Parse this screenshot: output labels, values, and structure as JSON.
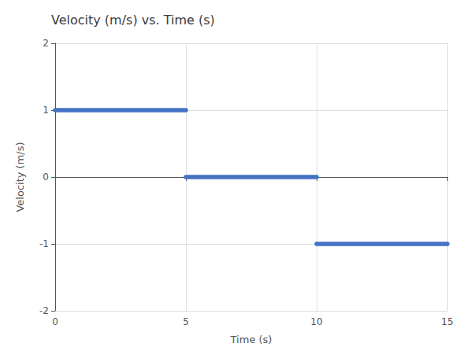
{
  "chart_data": {
    "type": "line",
    "title": "Velocity (m/s) vs. Time (s)",
    "xlabel": "Time (s)",
    "ylabel": "Velocity (m/s)",
    "x": [
      0,
      5,
      5,
      5,
      10,
      10,
      10,
      15
    ],
    "values": [
      1,
      1,
      null,
      0,
      0,
      null,
      -1,
      -1
    ],
    "color": "#4472C4",
    "marker": "none",
    "line_style": "solid",
    "xlim": [
      0,
      15
    ],
    "xticks": [
      0,
      5,
      10,
      15
    ],
    "ylim": [
      -2,
      2
    ],
    "yticks": [
      -2,
      -1,
      0,
      1,
      2
    ],
    "grid": true
  }
}
